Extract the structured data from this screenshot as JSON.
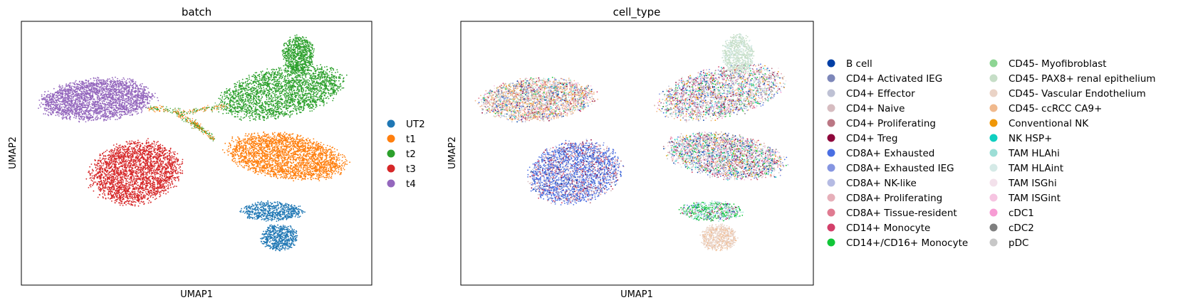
{
  "chart_data": [
    {
      "type": "scatter",
      "title": "batch",
      "xlabel": "UMAP1",
      "ylabel": "UMAP2",
      "grid": false,
      "ticks": false,
      "legend_position": "right",
      "legend": [
        {
          "label": "UT2",
          "color": "#1f77b4"
        },
        {
          "label": "t1",
          "color": "#ff7f0e"
        },
        {
          "label": "t2",
          "color": "#2ca02c"
        },
        {
          "label": "t3",
          "color": "#d62728"
        },
        {
          "label": "t4",
          "color": "#9467bd"
        }
      ],
      "clusters": [
        {
          "label": "t4",
          "note": "upper-left cluster"
        },
        {
          "label": "t2",
          "note": "upper-right cluster"
        },
        {
          "label": "t3",
          "note": "lower-left cluster"
        },
        {
          "label": "t1",
          "note": "right cluster"
        },
        {
          "label": "UT2",
          "note": "bottom cluster"
        }
      ]
    },
    {
      "type": "scatter",
      "title": "cell_type",
      "xlabel": "UMAP1",
      "ylabel": "UMAP2",
      "grid": false,
      "ticks": false,
      "legend_position": "right, two columns",
      "legend": [
        {
          "label": "B cell",
          "color": "#023fa5"
        },
        {
          "label": "CD4+ Activated IEG",
          "color": "#7d87b9"
        },
        {
          "label": "CD4+ Effector",
          "color": "#bec1d4"
        },
        {
          "label": "CD4+ Naive",
          "color": "#d6bcc0"
        },
        {
          "label": "CD4+ Proliferating",
          "color": "#bb7784"
        },
        {
          "label": "CD4+ Treg",
          "color": "#8e063b"
        },
        {
          "label": "CD8A+ Exhausted",
          "color": "#4a6fe3"
        },
        {
          "label": "CD8A+ Exhausted IEG",
          "color": "#8595e1"
        },
        {
          "label": "CD8A+ NK-like",
          "color": "#b5bbe3"
        },
        {
          "label": "CD8A+ Proliferating",
          "color": "#e6afb9"
        },
        {
          "label": "CD8A+ Tissue-resident",
          "color": "#e07b91"
        },
        {
          "label": "CD14+ Monocyte",
          "color": "#d33f6a"
        },
        {
          "label": "CD14+/CD16+ Monocyte",
          "color": "#11c638"
        },
        {
          "label": "CD45- Myofibroblast",
          "color": "#8dd593"
        },
        {
          "label": "CD45- PAX8+ renal epithelium",
          "color": "#c6dec7"
        },
        {
          "label": "CD45- Vascular Endothelium",
          "color": "#ead3c6"
        },
        {
          "label": "CD45- ccRCC CA9+",
          "color": "#f0b98d"
        },
        {
          "label": "Conventional NK",
          "color": "#ef9708"
        },
        {
          "label": "NK HSP+",
          "color": "#0fcfc0"
        },
        {
          "label": "TAM HLAhi",
          "color": "#9cded6"
        },
        {
          "label": "TAM HLAint",
          "color": "#d5eae7"
        },
        {
          "label": "TAM ISGhi",
          "color": "#f3e1eb"
        },
        {
          "label": "TAM ISGint",
          "color": "#f6c4e1"
        },
        {
          "label": "cDC1",
          "color": "#f79cd4"
        },
        {
          "label": "cDC2",
          "color": "#7f7f7f"
        },
        {
          "label": "pDC",
          "color": "#c7c7c7"
        }
      ]
    }
  ]
}
